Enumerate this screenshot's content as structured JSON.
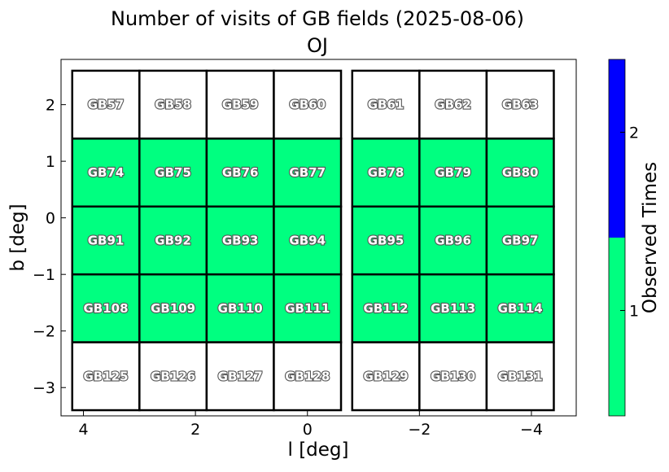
{
  "chart_data": {
    "type": "heatmap",
    "title": "Number of visits of GB fields (2025-08-06)",
    "subtitle": "OJ",
    "xlabel": "l [deg]",
    "ylabel": "b [deg]",
    "xlim": [
      4.4,
      -4.8
    ],
    "ylim": [
      -3.5,
      2.8
    ],
    "x_inverted": true,
    "xticks": [
      4,
      2,
      0,
      -2,
      -4
    ],
    "yticks": [
      2,
      1,
      0,
      -1,
      -2,
      -3
    ],
    "grid": false,
    "colorbar": {
      "label": "Observed Times",
      "ticks": [
        1,
        2
      ],
      "colors": {
        "1": "#00ff80",
        "2": "#0000ff"
      }
    },
    "column_centers_l": [
      3.6,
      2.4,
      1.2,
      0.0,
      -1.4,
      -2.6,
      -3.8
    ],
    "cell_width_deg": 1.2,
    "cell_height_deg": 1.2,
    "rows": [
      {
        "b": 2.0,
        "fields": [
          "GB57",
          "GB58",
          "GB59",
          "GB60",
          "GB61",
          "GB62",
          "GB63"
        ],
        "visits": [
          0,
          0,
          0,
          0,
          0,
          0,
          0
        ]
      },
      {
        "b": 0.8,
        "fields": [
          "GB74",
          "GB75",
          "GB76",
          "GB77",
          "GB78",
          "GB79",
          "GB80"
        ],
        "visits": [
          1,
          1,
          1,
          1,
          1,
          1,
          1
        ]
      },
      {
        "b": -0.4,
        "fields": [
          "GB91",
          "GB92",
          "GB93",
          "GB94",
          "GB95",
          "GB96",
          "GB97"
        ],
        "visits": [
          1,
          1,
          1,
          1,
          1,
          1,
          1
        ]
      },
      {
        "b": -1.6,
        "fields": [
          "GB108",
          "GB109",
          "GB110",
          "GB111",
          "GB112",
          "GB113",
          "GB114"
        ],
        "visits": [
          1,
          1,
          1,
          1,
          1,
          1,
          1
        ]
      },
      {
        "b": -2.8,
        "fields": [
          "GB125",
          "GB126",
          "GB127",
          "GB128",
          "GB129",
          "GB130",
          "GB131"
        ],
        "visits": [
          0,
          0,
          0,
          0,
          0,
          0,
          0
        ]
      }
    ]
  }
}
